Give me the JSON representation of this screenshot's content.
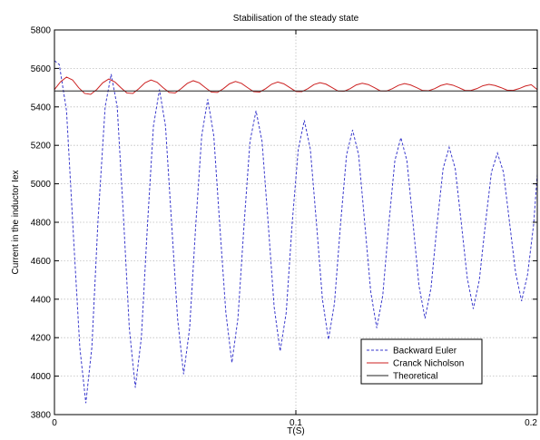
{
  "chart_data": {
    "type": "line",
    "title": "Stabilisation of the steady state",
    "xlabel": "T(S)",
    "ylabel": "Current in the inductor Iex",
    "xlim": [
      0,
      0.2
    ],
    "ylim": [
      3800,
      5800
    ],
    "xticks": [
      0,
      0.1,
      0.2
    ],
    "xtick_labels": [
      "0",
      "0.1",
      "0.2"
    ],
    "yticks": [
      3800,
      4000,
      4200,
      4400,
      4600,
      4800,
      5000,
      5200,
      5400,
      5600,
      5800
    ],
    "ytick_labels": [
      "3800",
      "4000",
      "4200",
      "4400",
      "4600",
      "4800",
      "5000",
      "5200",
      "5400",
      "5600",
      "5800"
    ],
    "grid": true,
    "legend_position": "bottom-right",
    "series": [
      {
        "name": "Backward Euler",
        "color": "#3a3acc",
        "style": "dashed",
        "x": [
          0,
          0.002,
          0.005,
          0.008,
          0.0105,
          0.013,
          0.0155,
          0.018,
          0.021,
          0.0235,
          0.026,
          0.0285,
          0.031,
          0.0335,
          0.036,
          0.0385,
          0.041,
          0.0435,
          0.046,
          0.0485,
          0.051,
          0.0535,
          0.056,
          0.0585,
          0.061,
          0.0635,
          0.066,
          0.0685,
          0.071,
          0.0735,
          0.076,
          0.0785,
          0.081,
          0.0835,
          0.086,
          0.0885,
          0.091,
          0.0935,
          0.096,
          0.0985,
          0.101,
          0.1035,
          0.106,
          0.1085,
          0.111,
          0.1135,
          0.116,
          0.1185,
          0.121,
          0.1235,
          0.126,
          0.1285,
          0.131,
          0.1335,
          0.136,
          0.1385,
          0.141,
          0.1435,
          0.146,
          0.1485,
          0.151,
          0.1535,
          0.156,
          0.1585,
          0.161,
          0.1635,
          0.166,
          0.1685,
          0.171,
          0.1735,
          0.176,
          0.1785,
          0.181,
          0.1835,
          0.186,
          0.1885,
          0.191,
          0.1935,
          0.196,
          0.1985,
          0.2
        ],
        "values": [
          5640,
          5620,
          5380,
          4700,
          4150,
          3860,
          4150,
          4800,
          5400,
          5570,
          5400,
          4850,
          4250,
          3940,
          4200,
          4780,
          5300,
          5490,
          5300,
          4800,
          4300,
          4010,
          4250,
          4780,
          5250,
          5440,
          5250,
          4780,
          4330,
          4070,
          4300,
          4780,
          5220,
          5380,
          5220,
          4800,
          4360,
          4130,
          4330,
          4800,
          5180,
          5330,
          5180,
          4800,
          4400,
          4190,
          4380,
          4790,
          5150,
          5280,
          5150,
          4800,
          4440,
          4250,
          4420,
          4790,
          5120,
          5240,
          5120,
          4800,
          4470,
          4300,
          4460,
          4790,
          5080,
          5190,
          5080,
          4800,
          4510,
          4350,
          4500,
          4790,
          5060,
          5160,
          5060,
          4800,
          4540,
          4390,
          4530,
          4790,
          5050
        ]
      },
      {
        "name": "Cranck Nicholson",
        "color": "#cc2222",
        "style": "solid",
        "x": [
          0,
          0.0025,
          0.005,
          0.0075,
          0.01,
          0.0125,
          0.015,
          0.0175,
          0.02,
          0.0225,
          0.025,
          0.0275,
          0.03,
          0.0325,
          0.035,
          0.0375,
          0.04,
          0.0425,
          0.045,
          0.0475,
          0.05,
          0.0525,
          0.055,
          0.0575,
          0.06,
          0.0625,
          0.065,
          0.0675,
          0.07,
          0.0725,
          0.075,
          0.0775,
          0.08,
          0.0825,
          0.085,
          0.0875,
          0.09,
          0.0925,
          0.095,
          0.0975,
          0.1,
          0.1025,
          0.105,
          0.1075,
          0.11,
          0.1125,
          0.115,
          0.1175,
          0.12,
          0.1225,
          0.125,
          0.1275,
          0.13,
          0.1325,
          0.135,
          0.1375,
          0.14,
          0.1425,
          0.145,
          0.1475,
          0.15,
          0.1525,
          0.155,
          0.1575,
          0.16,
          0.1625,
          0.165,
          0.1675,
          0.17,
          0.1725,
          0.175,
          0.1775,
          0.18,
          0.1825,
          0.185,
          0.1875,
          0.19,
          0.1925,
          0.195,
          0.1975,
          0.2
        ],
        "values": [
          5490,
          5530,
          5555,
          5540,
          5500,
          5470,
          5465,
          5490,
          5525,
          5545,
          5530,
          5500,
          5472,
          5470,
          5495,
          5525,
          5540,
          5528,
          5500,
          5475,
          5472,
          5495,
          5522,
          5536,
          5525,
          5500,
          5477,
          5475,
          5495,
          5520,
          5532,
          5522,
          5500,
          5479,
          5477,
          5495,
          5518,
          5529,
          5520,
          5500,
          5480,
          5479,
          5495,
          5516,
          5526,
          5518,
          5500,
          5482,
          5481,
          5495,
          5514,
          5523,
          5516,
          5500,
          5483,
          5482,
          5495,
          5512,
          5521,
          5514,
          5500,
          5485,
          5484,
          5495,
          5511,
          5519,
          5513,
          5500,
          5486,
          5485,
          5495,
          5510,
          5517,
          5511,
          5500,
          5487,
          5486,
          5495,
          5508,
          5515,
          5490
        ]
      },
      {
        "name": "Theoretical",
        "color": "#222222",
        "style": "solid",
        "x": [
          0,
          0.2
        ],
        "values": [
          5483,
          5483
        ]
      }
    ]
  }
}
